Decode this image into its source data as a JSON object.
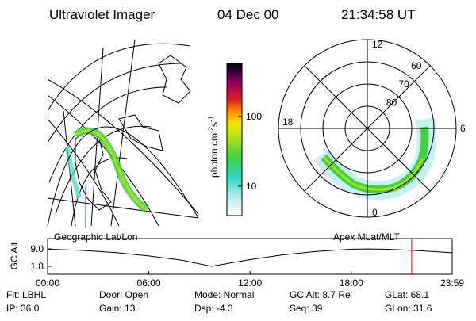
{
  "header": {
    "instrument": "Ultraviolet Imager",
    "date": "04 Dec 00",
    "time": "21:34:58 UT"
  },
  "colorbar": {
    "label": {
      "base": "photon cm",
      "exp1": "-2",
      "mid": "s",
      "exp2": "-1"
    },
    "lim": [
      3.8,
      575
    ],
    "scale": "log",
    "ticks": [
      10,
      100
    ]
  },
  "geo_panel": {
    "caption": "Geographic Lat/Lon"
  },
  "polar_panel": {
    "caption": "Apex MLat/MLT",
    "rlim": [
      90,
      50
    ],
    "rticks": [
      80,
      70,
      60
    ],
    "mlt_ticks": [
      0,
      6,
      12,
      18
    ]
  },
  "altitude_panel": {
    "ylabel": "GC Alt",
    "ylim": [
      -1.5,
      13.3
    ],
    "yticks": [
      {
        "value": 9.0,
        "label": "9.0"
      },
      {
        "value": 1.8,
        "label": "1.8"
      }
    ],
    "xlim": [
      0,
      23.983
    ],
    "xticks": [
      {
        "value": 0,
        "label": "00:00"
      },
      {
        "value": 6,
        "label": "06:00"
      },
      {
        "value": 12,
        "label": "12:00"
      },
      {
        "value": 18,
        "label": "18:00"
      },
      {
        "value": 23.983,
        "label": "23:59"
      }
    ],
    "curve": {
      "x": [
        0,
        2,
        4,
        6,
        8,
        9.7,
        12,
        14,
        16,
        18,
        19,
        20,
        22,
        23.983
      ],
      "values": [
        8.9,
        8.4,
        7.5,
        6.1,
        4.3,
        1.8,
        4.6,
        6.6,
        8.0,
        8.9,
        9.0,
        8.9,
        8.3,
        7.4
      ]
    },
    "marker": 21.58,
    "marker_color": "#e00000"
  },
  "info": [
    [
      "Flt: LBHL",
      "Door: Open",
      "Mode: Normal",
      "GC Alt: 8.7 Re",
      "GLat: 68.1"
    ],
    [
      "IP: 36.0",
      "Gain: 13",
      "Dsp: -4.3",
      "Seq: 39",
      "GLon: 31.6"
    ]
  ]
}
